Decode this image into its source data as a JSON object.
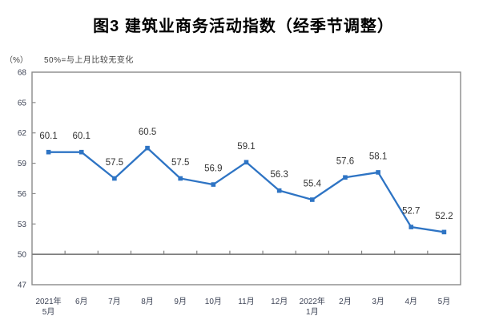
{
  "title": "图3 建筑业商务活动指数（经季节调整）",
  "unit_label": "（%）",
  "note": "50%=与上月比较无变化",
  "chart_data": {
    "type": "line",
    "title": "图3 建筑业商务活动指数（经季节调整）",
    "subtitle_note": "50%=与上月比较无变化",
    "ylabel": "（%）",
    "xlabel": "",
    "categories": [
      "2021年5月",
      "6月",
      "7月",
      "8月",
      "9月",
      "10月",
      "11月",
      "12月",
      "2022年1月",
      "2月",
      "3月",
      "4月",
      "5月"
    ],
    "x_tick_lines": [
      [
        "2021年",
        "5月"
      ],
      [
        "6月"
      ],
      [
        "7月"
      ],
      [
        "8月"
      ],
      [
        "9月"
      ],
      [
        "10月"
      ],
      [
        "11月"
      ],
      [
        "12月"
      ],
      [
        "2022年",
        "1月"
      ],
      [
        "2月"
      ],
      [
        "3月"
      ],
      [
        "4月"
      ],
      [
        "5月"
      ]
    ],
    "series": [
      {
        "name": "建筑业商务活动指数",
        "values": [
          60.1,
          60.1,
          57.5,
          60.5,
          57.5,
          56.9,
          59.1,
          56.3,
          55.4,
          57.6,
          58.1,
          52.7,
          52.2
        ],
        "point_labels": [
          "60.1",
          "60.1",
          "57.5",
          "60.5",
          "57.5",
          "56.9",
          "59.1",
          "56.3",
          "55.4",
          "57.6",
          "58.1",
          "52.7",
          "52.2"
        ]
      }
    ],
    "ylim": [
      47,
      68
    ],
    "y_ticks": [
      47,
      50,
      53,
      56,
      59,
      62,
      65,
      68
    ],
    "reference_line": 50,
    "grid": false,
    "legend_position": "none",
    "colors": {
      "line": "#2E74C4",
      "marker": "#2E74C4",
      "axis": "#8a8a8a",
      "ref_line": "#7f7f7f",
      "tick_label": "#3e4456",
      "data_label": "#333333"
    }
  }
}
